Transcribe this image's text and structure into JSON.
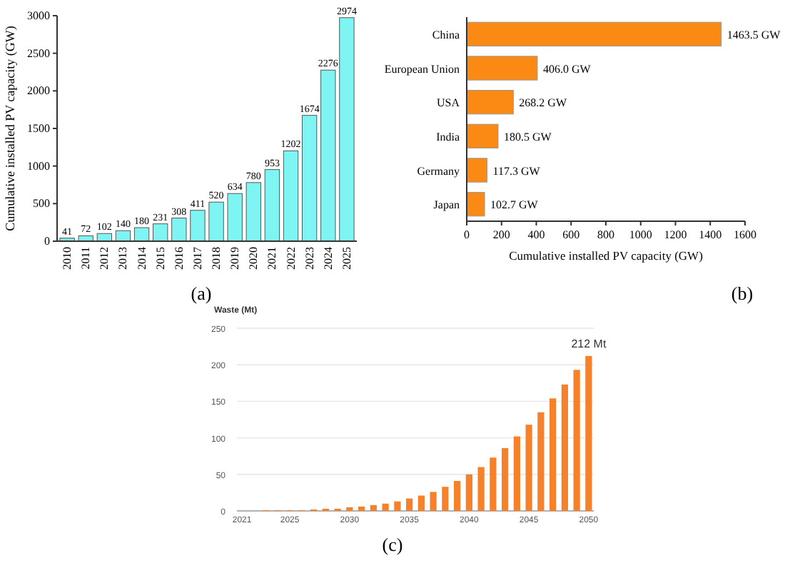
{
  "chart_data": [
    {
      "type": "bar",
      "title": "(a)",
      "ylabel": "Cumulative installed PV capacity (GW)",
      "categories": [
        "2010",
        "2011",
        "2012",
        "2013",
        "2014",
        "2015",
        "2016",
        "2017",
        "2018",
        "2019",
        "2020",
        "2021",
        "2022",
        "2023",
        "2024",
        "2025"
      ],
      "values": [
        41,
        72,
        102,
        140,
        180,
        231,
        308,
        411,
        520,
        634,
        780,
        953,
        1202,
        1674,
        2276,
        2974
      ],
      "color": "#7ff5f3",
      "ylim": [
        0,
        3000
      ],
      "yticks": [
        0,
        500,
        1000,
        1500,
        2000,
        2500,
        3000
      ],
      "data_labels": true,
      "grid": false
    },
    {
      "type": "bar",
      "orientation": "horizontal",
      "title": "(b)",
      "xlabel": "Cumulative installed PV capacity (GW)",
      "categories": [
        "China",
        "European Union",
        "USA",
        "India",
        "Germany",
        "Japan"
      ],
      "values": [
        1463.5,
        406.0,
        268.2,
        180.5,
        117.3,
        102.7
      ],
      "value_labels": [
        "1463.5 GW",
        "406.0 GW",
        "268.2 GW",
        "180.5 GW",
        "117.3 GW",
        "102.7 GW"
      ],
      "color": "#fb8a14",
      "xlim": [
        0,
        1600
      ],
      "xticks": [
        0,
        200,
        400,
        600,
        800,
        1000,
        1200,
        1400,
        1600
      ]
    },
    {
      "type": "bar",
      "title": "(c)",
      "ylabel": "Waste (Mt)",
      "categories": [
        "2021",
        null,
        null,
        null,
        "2025",
        null,
        null,
        null,
        null,
        "2030",
        null,
        null,
        null,
        null,
        "2035",
        null,
        null,
        null,
        null,
        "2040",
        null,
        null,
        null,
        null,
        "2045",
        null,
        null,
        null,
        null,
        "2050"
      ],
      "values": [
        0,
        0,
        1,
        1,
        1,
        1,
        2,
        3,
        3,
        5,
        6,
        8,
        10,
        13,
        17,
        21,
        26,
        33,
        41,
        50,
        60,
        73,
        86,
        102,
        118,
        135,
        154,
        173,
        193,
        212
      ],
      "color": "#f5822a",
      "ylim": [
        0,
        250
      ],
      "yticks": [
        0,
        50,
        100,
        150,
        200,
        250
      ],
      "grid": "y",
      "annotations": [
        {
          "text": "212 Mt",
          "x": "2050",
          "y": 212
        }
      ]
    }
  ]
}
